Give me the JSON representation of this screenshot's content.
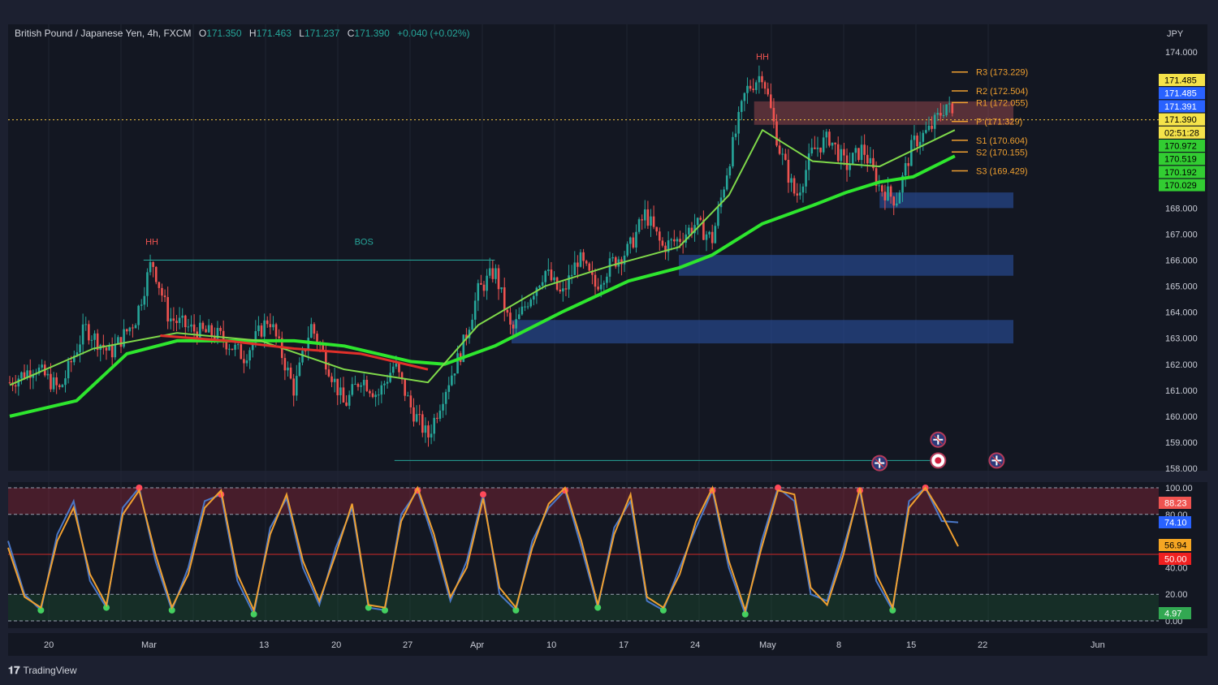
{
  "header": {
    "symbol": "British Pound / Japanese Yen, 4h, FXCM",
    "open_label": "O",
    "open": "171.350",
    "high_label": "H",
    "high": "171.463",
    "low_label": "L",
    "low": "171.237",
    "close_label": "C",
    "close": "171.390",
    "change": "+0.040 (+0.02%)"
  },
  "currency": "JPY",
  "brand": "TradingView",
  "colors": {
    "background": "#1c2030",
    "panel": "#131722",
    "bull": "#26a69a",
    "bear": "#ef5350",
    "ema_green": "#2ecc40",
    "pivot": "#f0a030",
    "supply_zone": "#a04a50",
    "demand_zone": "#2a4a8a"
  },
  "chart_data": [
    {
      "type": "candlestick",
      "title": "British Pound / Japanese Yen, 4h, FXCM",
      "xlabel": "",
      "ylabel": "JPY",
      "ylim": [
        158.0,
        174.5
      ],
      "x_ticks": [
        "20",
        "Mar",
        "13",
        "20",
        "27",
        "Apr",
        "10",
        "17",
        "24",
        "May",
        "8",
        "15",
        "22",
        "Jun"
      ],
      "y_ticks": [
        "174.000",
        "168.000",
        "167.000",
        "166.000",
        "165.000",
        "164.000",
        "163.000",
        "162.000",
        "161.000",
        "160.000",
        "159.000",
        "158.000"
      ],
      "price_path": [
        [
          0,
          161.3
        ],
        [
          3,
          161.9
        ],
        [
          6,
          161.0
        ],
        [
          9,
          163.4
        ],
        [
          12,
          162.4
        ],
        [
          15,
          163.7
        ],
        [
          17,
          166.0
        ],
        [
          19,
          163.8
        ],
        [
          22,
          163.3
        ],
        [
          25,
          163.1
        ],
        [
          28,
          162.3
        ],
        [
          31,
          163.8
        ],
        [
          34,
          161.0
        ],
        [
          36,
          163.5
        ],
        [
          38,
          162.0
        ],
        [
          40,
          160.4
        ],
        [
          42,
          161.5
        ],
        [
          44,
          160.8
        ],
        [
          46,
          162.0
        ],
        [
          48,
          160.3
        ],
        [
          50,
          159.2
        ],
        [
          52,
          161.0
        ],
        [
          54,
          162.5
        ],
        [
          56,
          164.8
        ],
        [
          58,
          165.6
        ],
        [
          60,
          163.2
        ],
        [
          62,
          164.5
        ],
        [
          64,
          165.6
        ],
        [
          66,
          164.6
        ],
        [
          68,
          166.1
        ],
        [
          70,
          165.0
        ],
        [
          72,
          165.9
        ],
        [
          74,
          166.4
        ],
        [
          76,
          167.8
        ],
        [
          78,
          166.5
        ],
        [
          80,
          166.8
        ],
        [
          82,
          167.4
        ],
        [
          84,
          166.8
        ],
        [
          86,
          169.8
        ],
        [
          88,
          172.5
        ],
        [
          90,
          173.2
        ],
        [
          92,
          170.3
        ],
        [
          94,
          168.4
        ],
        [
          96,
          170.2
        ],
        [
          98,
          170.7
        ],
        [
          100,
          169.6
        ],
        [
          102,
          170.3
        ],
        [
          104,
          168.8
        ],
        [
          106,
          168.3
        ],
        [
          108,
          170.5
        ],
        [
          110,
          171.0
        ],
        [
          112,
          172.0
        ],
        [
          113,
          171.4
        ]
      ],
      "ema_fast": [
        [
          0,
          161.2
        ],
        [
          10,
          162.6
        ],
        [
          20,
          163.2
        ],
        [
          30,
          162.9
        ],
        [
          40,
          161.8
        ],
        [
          50,
          161.3
        ],
        [
          56,
          163.5
        ],
        [
          64,
          165.0
        ],
        [
          72,
          165.8
        ],
        [
          80,
          166.5
        ],
        [
          86,
          168.5
        ],
        [
          90,
          171.0
        ],
        [
          96,
          169.8
        ],
        [
          104,
          169.6
        ],
        [
          113,
          171.0
        ]
      ],
      "ema_slow": [
        [
          0,
          160.0
        ],
        [
          8,
          160.6
        ],
        [
          14,
          162.4
        ],
        [
          20,
          162.9
        ],
        [
          28,
          162.9
        ],
        [
          34,
          162.9
        ],
        [
          40,
          162.7
        ],
        [
          48,
          162.1
        ],
        [
          52,
          162.0
        ],
        [
          58,
          162.7
        ],
        [
          66,
          164.0
        ],
        [
          74,
          165.2
        ],
        [
          80,
          165.7
        ],
        [
          84,
          166.2
        ],
        [
          90,
          167.4
        ],
        [
          96,
          168.1
        ],
        [
          100,
          168.6
        ],
        [
          104,
          169.0
        ],
        [
          108,
          169.2
        ],
        [
          113,
          170.0
        ]
      ],
      "ema_red": [
        [
          18,
          163.1
        ],
        [
          26,
          162.9
        ],
        [
          34,
          162.6
        ],
        [
          42,
          162.4
        ],
        [
          50,
          161.8
        ]
      ],
      "pivots": [
        {
          "label": "R3 (173.229)",
          "value": 173.229
        },
        {
          "label": "R2 (172.504)",
          "value": 172.504
        },
        {
          "label": "R1 (172.055)",
          "value": 172.055
        },
        {
          "label": "P (171.329)",
          "value": 171.329
        },
        {
          "label": "S1 (170.604)",
          "value": 170.604
        },
        {
          "label": "S2 (170.155)",
          "value": 170.155
        },
        {
          "label": "S3 (169.429)",
          "value": 169.429
        }
      ],
      "zones": [
        {
          "kind": "supply",
          "from_x": 89,
          "to_x": 120,
          "top": 172.1,
          "bottom": 171.2
        },
        {
          "kind": "demand",
          "from_x": 104,
          "to_x": 120,
          "top": 168.6,
          "bottom": 168.0
        },
        {
          "kind": "demand",
          "from_x": 80,
          "to_x": 120,
          "top": 166.2,
          "bottom": 165.4
        },
        {
          "kind": "demand",
          "from_x": 60,
          "to_x": 120,
          "top": 163.7,
          "bottom": 162.8
        }
      ],
      "structure_labels": [
        {
          "text": "HH",
          "x": 17,
          "y": 166.6,
          "color": "#ef5350"
        },
        {
          "text": "BOS",
          "x": 42,
          "y": 166.6,
          "color": "#26a69a"
        },
        {
          "text": "HH",
          "x": 90,
          "y": 173.7,
          "color": "#ef5350"
        }
      ],
      "markers": [
        {
          "kind": "gb-flag",
          "x": 104,
          "y": 158.2
        },
        {
          "kind": "gb-flag",
          "x": 111,
          "y": 159.1
        },
        {
          "kind": "target",
          "x": 111,
          "y": 158.3
        },
        {
          "kind": "gb-flag",
          "x": 118,
          "y": 158.3
        }
      ],
      "price_labels": [
        {
          "text": "171.485",
          "bg": "#f5e34a",
          "fg": "#000000"
        },
        {
          "text": "171.485",
          "bg": "#2962ff",
          "fg": "#ffffff"
        },
        {
          "text": "171.391",
          "bg": "#2962ff",
          "fg": "#ffffff"
        },
        {
          "text": "171.390",
          "bg": "#f5e34a",
          "fg": "#000000"
        },
        {
          "text": "02:51:28",
          "bg": "#f5e34a",
          "fg": "#000000"
        },
        {
          "text": "170.972",
          "bg": "#32cd32",
          "fg": "#000000"
        },
        {
          "text": "170.519",
          "bg": "#32cd32",
          "fg": "#000000"
        },
        {
          "text": "170.192",
          "bg": "#32cd32",
          "fg": "#000000"
        },
        {
          "text": "170.029",
          "bg": "#32cd32",
          "fg": "#000000"
        }
      ]
    },
    {
      "type": "line",
      "title": "",
      "ylim": [
        0,
        100
      ],
      "y_ticks": [
        "100.00",
        "80.00",
        "40.00",
        "20.00",
        "0.00"
      ],
      "levels": [
        100,
        80,
        50,
        20,
        0
      ],
      "series": [
        {
          "color": "#4a78c8",
          "values": [
            60,
            20,
            8,
            65,
            90,
            30,
            10,
            85,
            100,
            45,
            8,
            40,
            90,
            95,
            30,
            5,
            70,
            92,
            40,
            12,
            55,
            85,
            10,
            8,
            80,
            98,
            60,
            15,
            45,
            95,
            20,
            8,
            60,
            85,
            98,
            55,
            10,
            70,
            90,
            15,
            8,
            40,
            70,
            98,
            40,
            5,
            60,
            100,
            90,
            20,
            15,
            55,
            98,
            30,
            8,
            90,
            100,
            75,
            74
          ]
        },
        {
          "color": "#f0a030",
          "values": [
            55,
            18,
            10,
            60,
            85,
            35,
            12,
            80,
            98,
            50,
            10,
            35,
            85,
            98,
            35,
            8,
            65,
            95,
            45,
            15,
            50,
            88,
            12,
            10,
            75,
            100,
            65,
            18,
            40,
            92,
            25,
            10,
            55,
            88,
            100,
            60,
            12,
            65,
            95,
            18,
            10,
            35,
            75,
            100,
            45,
            8,
            55,
            98,
            95,
            25,
            12,
            50,
            100,
            35,
            10,
            85,
            100,
            80,
            56
          ]
        }
      ],
      "price_labels": [
        {
          "text": "88.23",
          "bg": "#ef5350",
          "fg": "#ffffff"
        },
        {
          "text": "74.10",
          "bg": "#2962ff",
          "fg": "#ffffff"
        },
        {
          "text": "56.94",
          "bg": "#f5a623",
          "fg": "#000000"
        },
        {
          "text": "50.00",
          "bg": "#ef2020",
          "fg": "#ffffff"
        },
        {
          "text": "4.97",
          "bg": "#32a852",
          "fg": "#ffffff"
        }
      ]
    }
  ]
}
